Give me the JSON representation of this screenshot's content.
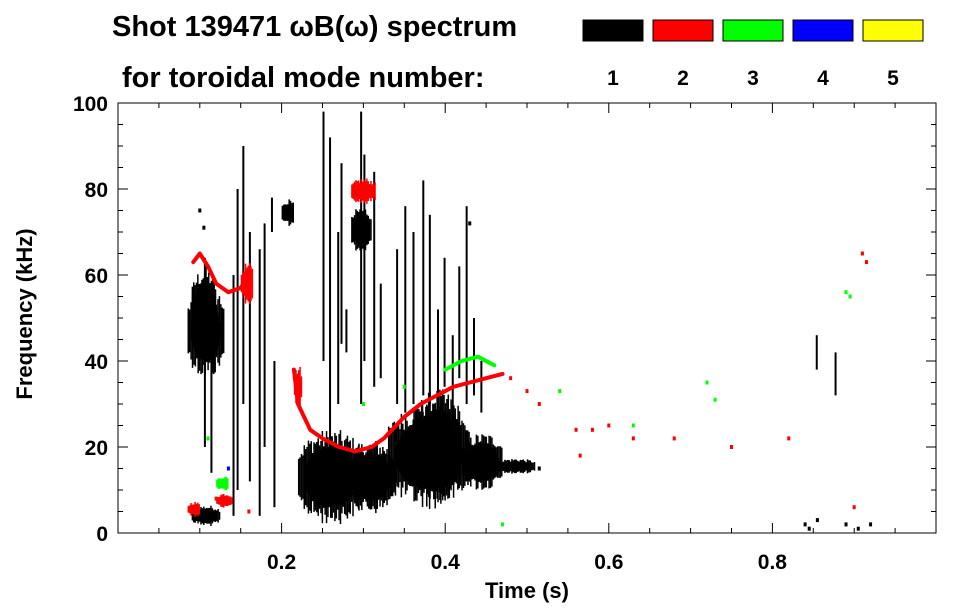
{
  "chart_data": {
    "type": "heatmap",
    "title": "Shot 139471 ωB(ω) spectrum",
    "subtitle": "for toroidal mode number:",
    "xlabel": "Time (s)",
    "ylabel": "Frequency (kHz)",
    "xlim": [
      0,
      1.0
    ],
    "ylim": [
      0,
      100
    ],
    "x_ticks": [
      0.2,
      0.4,
      0.6,
      0.8
    ],
    "y_ticks": [
      0,
      20,
      40,
      60,
      80,
      100
    ],
    "x_tick_labels": [
      "0.2",
      "0.4",
      "0.6",
      "0.8"
    ],
    "y_tick_labels": [
      "0",
      "20",
      "40",
      "60",
      "80",
      "100"
    ],
    "grid": false,
    "legend_position": "top-right",
    "series": [
      {
        "name": "1",
        "color": "#000000",
        "blobs": [
          {
            "t0": 0.085,
            "t1": 0.13,
            "f0": 38,
            "f1": 56
          },
          {
            "t0": 0.09,
            "t1": 0.12,
            "f0": 44,
            "f1": 60
          },
          {
            "t0": 0.09,
            "t1": 0.125,
            "f0": 2,
            "f1": 6
          },
          {
            "t0": 0.22,
            "t1": 0.3,
            "f0": 4,
            "f1": 22
          },
          {
            "t0": 0.28,
            "t1": 0.34,
            "f0": 6,
            "f1": 20
          },
          {
            "t0": 0.33,
            "t1": 0.43,
            "f0": 8,
            "f1": 28
          },
          {
            "t0": 0.36,
            "t1": 0.42,
            "f0": 10,
            "f1": 31
          },
          {
            "t0": 0.42,
            "t1": 0.47,
            "f0": 11,
            "f1": 22
          },
          {
            "t0": 0.46,
            "t1": 0.51,
            "f0": 14,
            "f1": 17
          },
          {
            "t0": 0.285,
            "t1": 0.31,
            "f0": 66,
            "f1": 75
          },
          {
            "t0": 0.2,
            "t1": 0.215,
            "f0": 72,
            "f1": 77
          }
        ],
        "streaks": [
          {
            "t": 0.105,
            "f0": 20,
            "f1": 64
          },
          {
            "t": 0.113,
            "f0": 14,
            "f1": 58
          },
          {
            "t": 0.14,
            "f0": 4,
            "f1": 60
          },
          {
            "t": 0.145,
            "f0": 10,
            "f1": 80
          },
          {
            "t": 0.152,
            "f0": 30,
            "f1": 90
          },
          {
            "t": 0.16,
            "f0": 12,
            "f1": 70
          },
          {
            "t": 0.172,
            "f0": 4,
            "f1": 66
          },
          {
            "t": 0.178,
            "f0": 20,
            "f1": 72
          },
          {
            "t": 0.19,
            "f0": 6,
            "f1": 40
          },
          {
            "t": 0.187,
            "f0": 70,
            "f1": 78
          },
          {
            "t": 0.25,
            "f0": 40,
            "f1": 98
          },
          {
            "t": 0.258,
            "f0": 20,
            "f1": 92
          },
          {
            "t": 0.268,
            "f0": 30,
            "f1": 70
          },
          {
            "t": 0.272,
            "f0": 44,
            "f1": 86
          },
          {
            "t": 0.278,
            "f0": 42,
            "f1": 52
          },
          {
            "t": 0.296,
            "f0": 30,
            "f1": 98
          },
          {
            "t": 0.3,
            "f0": 40,
            "f1": 88
          },
          {
            "t": 0.312,
            "f0": 34,
            "f1": 84
          },
          {
            "t": 0.32,
            "f0": 36,
            "f1": 58
          },
          {
            "t": 0.34,
            "f0": 30,
            "f1": 66
          },
          {
            "t": 0.35,
            "f0": 28,
            "f1": 76
          },
          {
            "t": 0.36,
            "f0": 30,
            "f1": 70
          },
          {
            "t": 0.372,
            "f0": 32,
            "f1": 82
          },
          {
            "t": 0.38,
            "f0": 30,
            "f1": 74
          },
          {
            "t": 0.39,
            "f0": 26,
            "f1": 52
          },
          {
            "t": 0.398,
            "f0": 34,
            "f1": 64
          },
          {
            "t": 0.408,
            "f0": 26,
            "f1": 46
          },
          {
            "t": 0.416,
            "f0": 36,
            "f1": 62
          },
          {
            "t": 0.425,
            "f0": 30,
            "f1": 76
          },
          {
            "t": 0.434,
            "f0": 32,
            "f1": 50
          },
          {
            "t": 0.443,
            "f0": 28,
            "f1": 40
          },
          {
            "t": 0.853,
            "f0": 38,
            "f1": 46
          },
          {
            "t": 0.876,
            "f0": 32,
            "f1": 42
          }
        ],
        "dots": [
          [
            0.84,
            2
          ],
          [
            0.845,
            1
          ],
          [
            0.855,
            3
          ],
          [
            0.89,
            2
          ],
          [
            0.905,
            1
          ],
          [
            0.92,
            2
          ],
          [
            0.1,
            75
          ],
          [
            0.105,
            71
          ],
          [
            0.43,
            72
          ],
          [
            0.515,
            15
          ]
        ]
      },
      {
        "name": "2",
        "color": "#ff0000",
        "curves": [
          [
            [
              0.092,
              63
            ],
            [
              0.1,
              65
            ],
            [
              0.11,
              62
            ],
            [
              0.12,
              58
            ],
            [
              0.135,
              56
            ],
            [
              0.15,
              57
            ],
            [
              0.16,
              60
            ]
          ],
          [
            [
              0.215,
              38
            ],
            [
              0.22,
              30
            ],
            [
              0.235,
              24
            ],
            [
              0.25,
              22
            ],
            [
              0.27,
              20
            ],
            [
              0.29,
              19
            ],
            [
              0.31,
              20
            ],
            [
              0.325,
              22
            ],
            [
              0.335,
              24
            ]
          ],
          [
            [
              0.33,
              23
            ],
            [
              0.35,
              27
            ],
            [
              0.37,
              30
            ],
            [
              0.39,
              32
            ],
            [
              0.41,
              34
            ],
            [
              0.43,
              35
            ],
            [
              0.45,
              36
            ],
            [
              0.47,
              37
            ]
          ],
          [
            [
              0.29,
              79
            ],
            [
              0.3,
              78
            ],
            [
              0.31,
              80
            ]
          ]
        ],
        "blobs": [
          {
            "t0": 0.285,
            "t1": 0.315,
            "f0": 77,
            "f1": 82
          },
          {
            "t0": 0.15,
            "t1": 0.165,
            "f0": 54,
            "f1": 62
          },
          {
            "t0": 0.085,
            "t1": 0.1,
            "f0": 4,
            "f1": 7
          },
          {
            "t0": 0.12,
            "t1": 0.14,
            "f0": 6,
            "f1": 9
          },
          {
            "t0": 0.215,
            "t1": 0.225,
            "f0": 30,
            "f1": 38
          }
        ],
        "dots": [
          [
            0.48,
            36
          ],
          [
            0.5,
            33
          ],
          [
            0.515,
            30
          ],
          [
            0.56,
            24
          ],
          [
            0.58,
            24
          ],
          [
            0.6,
            25
          ],
          [
            0.63,
            22
          ],
          [
            0.68,
            22
          ],
          [
            0.75,
            20
          ],
          [
            0.82,
            22
          ],
          [
            0.91,
            65
          ],
          [
            0.915,
            63
          ],
          [
            0.9,
            6
          ],
          [
            0.12,
            8
          ],
          [
            0.16,
            5
          ],
          [
            0.565,
            18
          ]
        ]
      },
      {
        "name": "3",
        "color": "#00ff00",
        "curves": [
          [
            [
              0.4,
              38
            ],
            [
              0.42,
              40
            ],
            [
              0.44,
              41
            ],
            [
              0.46,
              39
            ]
          ]
        ],
        "blobs": [
          {
            "t0": 0.12,
            "t1": 0.135,
            "f0": 10,
            "f1": 13
          }
        ],
        "dots": [
          [
            0.47,
            2
          ],
          [
            0.89,
            56
          ],
          [
            0.895,
            55
          ],
          [
            0.72,
            35
          ],
          [
            0.73,
            31
          ],
          [
            0.63,
            25
          ],
          [
            0.54,
            33
          ],
          [
            0.3,
            30
          ],
          [
            0.35,
            34
          ],
          [
            0.11,
            22
          ]
        ]
      },
      {
        "name": "4",
        "color": "#0000ff",
        "dots": [
          [
            0.135,
            15
          ]
        ]
      },
      {
        "name": "5",
        "color": "#ffff00",
        "dots": []
      }
    ]
  }
}
